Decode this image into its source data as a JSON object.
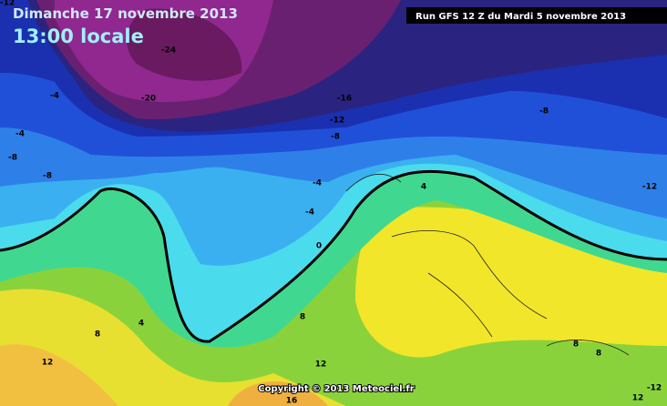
{
  "header": {
    "date": "Dimanche 17 novembre 2013",
    "time": "13:00 locale",
    "run": "Run GFS 12 Z du Mardi 5 novembre 2013"
  },
  "footer": {
    "copyright": "Copyright © 2013 Meteociel.fr"
  },
  "contour_labels": [
    "-12",
    "-24",
    "-20",
    "-16",
    "-12",
    "-8",
    "-4",
    "-4",
    "-8",
    "-8",
    "-4",
    "-4",
    "0",
    "4",
    "-8",
    "-12",
    "4",
    "8",
    "8",
    "12",
    "12",
    "16",
    "8",
    "8",
    "12",
    "-12"
  ]
}
